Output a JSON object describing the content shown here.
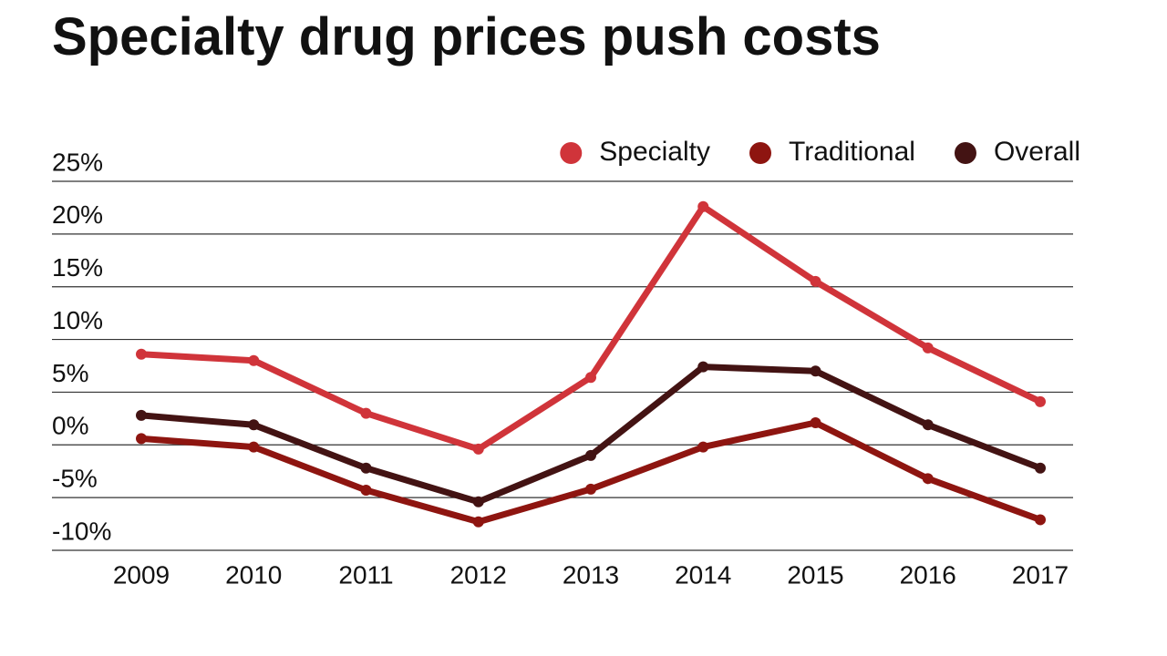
{
  "chart_data": {
    "type": "line",
    "title": "Specialty drug prices push costs",
    "categories": [
      "2009",
      "2010",
      "2011",
      "2012",
      "2013",
      "2014",
      "2015",
      "2016",
      "2017"
    ],
    "series": [
      {
        "name": "Specialty",
        "color": "#d0343a",
        "values": [
          8.6,
          8.0,
          3.0,
          -0.4,
          6.4,
          22.6,
          15.5,
          9.2,
          4.1
        ]
      },
      {
        "name": "Traditional",
        "color": "#8e1510",
        "values": [
          0.6,
          -0.2,
          -4.3,
          -7.3,
          -4.2,
          -0.2,
          2.1,
          -3.2,
          -7.1
        ]
      },
      {
        "name": "Overall",
        "color": "#431313",
        "values": [
          2.8,
          1.9,
          -2.2,
          -5.4,
          -1.0,
          7.4,
          7.0,
          1.9,
          -2.2
        ]
      }
    ],
    "ylim": [
      -10,
      25
    ],
    "yticks": [
      {
        "value": -10,
        "label": "-10%"
      },
      {
        "value": -5,
        "label": "-5%"
      },
      {
        "value": 0,
        "label": "0%"
      },
      {
        "value": 5,
        "label": "5%"
      },
      {
        "value": 10,
        "label": "10%"
      },
      {
        "value": 15,
        "label": "15%"
      },
      {
        "value": 20,
        "label": "20%"
      },
      {
        "value": 25,
        "label": "25%"
      }
    ],
    "grid": true,
    "legend": "top-right"
  }
}
